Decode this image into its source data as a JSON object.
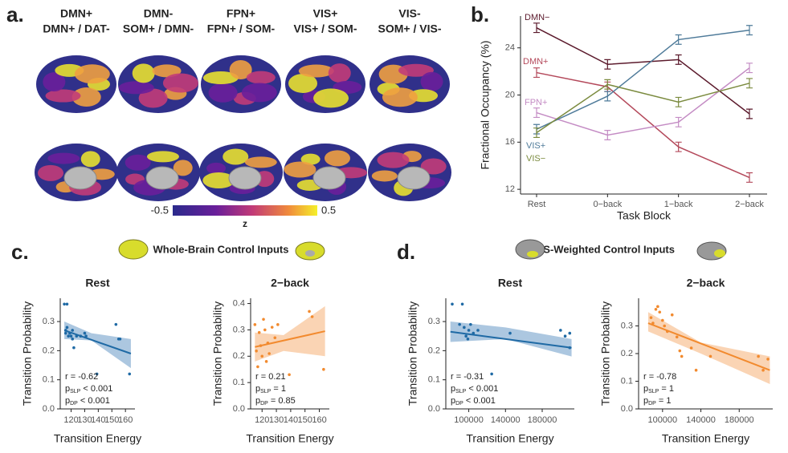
{
  "panel_labels": [
    "a.",
    "b.",
    "c.",
    "d."
  ],
  "brain_maps": {
    "columns": [
      {
        "title": "DMN+",
        "subtitle": "DMN+ / DAT-"
      },
      {
        "title": "DMN-",
        "subtitle": "SOM+ / DMN-"
      },
      {
        "title": "FPN+",
        "subtitle": "FPN+ / SOM-"
      },
      {
        "title": "VIS+",
        "subtitle": "VIS+ / SOM-"
      },
      {
        "title": "VIS-",
        "subtitle": "SOM+ / VIS-"
      }
    ],
    "colorbar": {
      "label": "z",
      "lim": [
        -0.5,
        0.5
      ],
      "ticks": [
        -0.5,
        0.5
      ]
    }
  },
  "section_titles": [
    "Whole-Brain Control Inputs",
    "VIS-Weighted Control Inputs"
  ],
  "chart_data": [
    {
      "type": "line",
      "xlabel": "Task Block",
      "ylabel": "Fractional Occupancy (%)",
      "categories": [
        "Rest",
        "0−back",
        "1−back",
        "2−back"
      ],
      "ylim": [
        11.6,
        26.7
      ],
      "yticks": [
        12,
        16,
        20,
        24
      ],
      "series": [
        {
          "name": "DMN−",
          "color": "#5b1a2c",
          "values": [
            25.7,
            22.6,
            23.0,
            18.4
          ],
          "errors": [
            0.4,
            0.4,
            0.4,
            0.4
          ]
        },
        {
          "name": "DMN+",
          "color": "#b4495b",
          "values": [
            21.9,
            20.7,
            15.6,
            13.0
          ],
          "errors": [
            0.4,
            0.4,
            0.4,
            0.4
          ]
        },
        {
          "name": "FPN+",
          "color": "#c48cc4",
          "values": [
            18.5,
            16.6,
            17.7,
            22.3
          ],
          "errors": [
            0.4,
            0.4,
            0.4,
            0.4
          ]
        },
        {
          "name": "VIS+",
          "color": "#4f7b9a",
          "values": [
            17.1,
            19.9,
            24.7,
            25.5
          ],
          "errors": [
            0.4,
            0.4,
            0.4,
            0.4
          ]
        },
        {
          "name": "VIS−",
          "color": "#7b8b3f",
          "values": [
            16.8,
            20.9,
            19.4,
            21.0
          ],
          "errors": [
            0.4,
            0.4,
            0.4,
            0.4
          ]
        }
      ]
    },
    {
      "type": "scatter",
      "title": "Rest",
      "xlabel": "Transition Energy",
      "ylabel": "Transition Probability",
      "color": "#1f6aa5",
      "band_color": "#7fa9cf",
      "x": [
        115,
        117,
        116,
        116,
        117,
        118,
        119,
        120,
        121,
        121,
        122,
        124,
        127,
        130,
        131,
        139,
        153,
        155,
        156,
        163
      ],
      "values": [
        0.36,
        0.36,
        0.27,
        0.26,
        0.28,
        0.25,
        0.26,
        0.25,
        0.24,
        0.27,
        0.21,
        0.25,
        0.25,
        0.26,
        0.25,
        0.12,
        0.29,
        0.24,
        0.24,
        0.12
      ],
      "xlim": [
        112,
        167
      ],
      "ylim": [
        0,
        0.38
      ],
      "xticks": [
        120,
        130,
        140,
        150,
        160
      ],
      "yticks": [
        {
          "value": 0,
          "label": "0.0"
        },
        0.1,
        0.2,
        0.3
      ],
      "fit": {
        "x": [
          115,
          164
        ],
        "y": [
          0.27,
          0.19
        ]
      },
      "band": {
        "x": [
          115,
          135,
          164
        ],
        "lower": [
          0.24,
          0.235,
          0.14
        ],
        "upper": [
          0.3,
          0.26,
          0.24
        ]
      },
      "annotations": [
        {
          "text": "r = -0.62"
        },
        {
          "text": "p",
          "sub": "SLP",
          "rest": "< 0.001"
        },
        {
          "text": "p",
          "sub": "DP",
          "rest": "< 0.001"
        }
      ]
    },
    {
      "type": "scatter",
      "title": "2−back",
      "xlabel": "Transition Energy",
      "ylabel": "Transition Probability",
      "color": "#f28a2e",
      "band_color": "#f7bd8c",
      "x": [
        115,
        116,
        117,
        118,
        119,
        120,
        121,
        122,
        123,
        124,
        125,
        127,
        129,
        131,
        139,
        153,
        155,
        163
      ],
      "values": [
        0.32,
        0.22,
        0.16,
        0.29,
        0.24,
        0.2,
        0.34,
        0.3,
        0.18,
        0.25,
        0.21,
        0.31,
        0.27,
        0.32,
        0.13,
        0.37,
        0.35,
        0.15
      ],
      "xlim": [
        112,
        167
      ],
      "ylim": [
        0,
        0.42
      ],
      "xticks": [
        120,
        130,
        140,
        150,
        160
      ],
      "yticks": [
        {
          "value": 0,
          "label": "0.0"
        },
        0.1,
        0.2,
        0.3,
        0.4
      ],
      "fit": {
        "x": [
          115,
          164
        ],
        "y": [
          0.235,
          0.295
        ]
      },
      "band": {
        "x": [
          115,
          135,
          164
        ],
        "lower": [
          0.18,
          0.22,
          0.2
        ],
        "upper": [
          0.29,
          0.28,
          0.39
        ]
      },
      "annotations": [
        {
          "text": "r = 0.21"
        },
        {
          "text": "p",
          "sub": "SLP",
          "rest": "= 1"
        },
        {
          "text": "p",
          "sub": "DP",
          "rest": "= 0.85"
        }
      ]
    },
    {
      "type": "scatter",
      "title": "Rest",
      "xlabel": "Transition Energy",
      "ylabel": "Transition Probability",
      "color": "#1f6aa5",
      "band_color": "#7fa9cf",
      "x": [
        82000,
        90000,
        93000,
        95000,
        97000,
        99000,
        100000,
        102000,
        105000,
        110000,
        125000,
        145000,
        200000,
        205000,
        210000,
        210000
      ],
      "values": [
        0.36,
        0.29,
        0.36,
        0.28,
        0.25,
        0.24,
        0.27,
        0.29,
        0.26,
        0.27,
        0.12,
        0.26,
        0.27,
        0.25,
        0.21,
        0.26
      ],
      "xlim": [
        75000,
        215000
      ],
      "ylim": [
        0,
        0.38
      ],
      "xticks": [
        100000,
        140000,
        180000
      ],
      "yticks": [
        {
          "value": 0,
          "label": "0.0"
        },
        0.1,
        0.2,
        0.3
      ],
      "fit": {
        "x": [
          80000,
          212000
        ],
        "y": [
          0.265,
          0.21
        ]
      },
      "band": {
        "x": [
          80000,
          140000,
          212000
        ],
        "lower": [
          0.23,
          0.24,
          0.18
        ],
        "upper": [
          0.3,
          0.28,
          0.24
        ]
      },
      "annotations": [
        {
          "text": "r = -0.31"
        },
        {
          "text": "p",
          "sub": "SLP",
          "rest": "< 0.001"
        },
        {
          "text": "p",
          "sub": "DP",
          "rest": "< 0.001"
        }
      ]
    },
    {
      "type": "scatter",
      "title": "2−back",
      "xlabel": "Transition Energy",
      "ylabel": "Transition Probability",
      "color": "#f28a2e",
      "band_color": "#f7bd8c",
      "x": [
        88000,
        90000,
        93000,
        95000,
        97000,
        100000,
        102000,
        105000,
        110000,
        115000,
        118000,
        120000,
        130000,
        135000,
        150000,
        200000,
        210000,
        205000
      ],
      "values": [
        0.33,
        0.31,
        0.36,
        0.37,
        0.35,
        0.32,
        0.3,
        0.28,
        0.34,
        0.26,
        0.21,
        0.19,
        0.22,
        0.14,
        0.19,
        0.19,
        0.18,
        0.14
      ],
      "xlim": [
        75000,
        215000
      ],
      "ylim": [
        0,
        0.4
      ],
      "xticks": [
        100000,
        140000,
        180000
      ],
      "yticks": [
        {
          "value": 0,
          "label": "0.0"
        },
        0.1,
        0.2,
        0.3
      ],
      "fit": {
        "x": [
          85000,
          212000
        ],
        "y": [
          0.31,
          0.14
        ]
      },
      "band": {
        "x": [
          85000,
          140000,
          212000
        ],
        "lower": [
          0.28,
          0.2,
          0.09
        ],
        "upper": [
          0.35,
          0.24,
          0.19
        ]
      },
      "annotations": [
        {
          "text": "r = -0.78"
        },
        {
          "text": "p",
          "sub": "SLP",
          "rest": "= 1"
        },
        {
          "text": "p",
          "sub": "DP",
          "rest": "= 1"
        }
      ]
    }
  ]
}
